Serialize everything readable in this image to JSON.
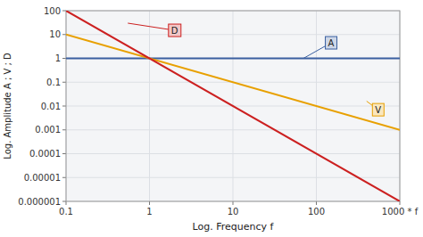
{
  "chart_data": {
    "type": "line",
    "xlabel": "Log. Frequency f",
    "ylabel": "Log. Amplitude A ; V ; D",
    "log": true,
    "grid": true,
    "xlim": [
      0.1,
      1000
    ],
    "ylim": [
      1e-06,
      100
    ],
    "xticks": [
      0.1,
      1,
      10,
      100,
      {
        "value": 1000,
        "label": "1000 * f"
      }
    ],
    "yticks": [
      1e-06,
      1e-05,
      0.0001,
      0.001,
      0.01,
      0.1,
      1,
      10,
      100
    ],
    "x": [
      0.1,
      1000
    ],
    "series": [
      {
        "color": "#3a5fa0",
        "values": [
          1.0,
          1.0
        ]
      },
      {
        "color": "#e8a000",
        "values": [
          10.0,
          0.001
        ]
      },
      {
        "color": "#cc2020",
        "values": [
          100.0,
          1e-06
        ]
      }
    ],
    "annotations": [
      {
        "text": "D",
        "x": 2.0,
        "y": 15.0,
        "arrow_x": 0.55,
        "arrow_y": 30.0,
        "color": "#cc2020"
      },
      {
        "text": "A",
        "x": 150,
        "y": 4.5,
        "arrow_x": 70,
        "arrow_y": 1.0,
        "color": "#3a5fa0"
      },
      {
        "text": "V",
        "x": 550,
        "y": 0.007,
        "arrow_x": 400,
        "arrow_y": 0.016,
        "color": "#e8a000"
      }
    ]
  }
}
